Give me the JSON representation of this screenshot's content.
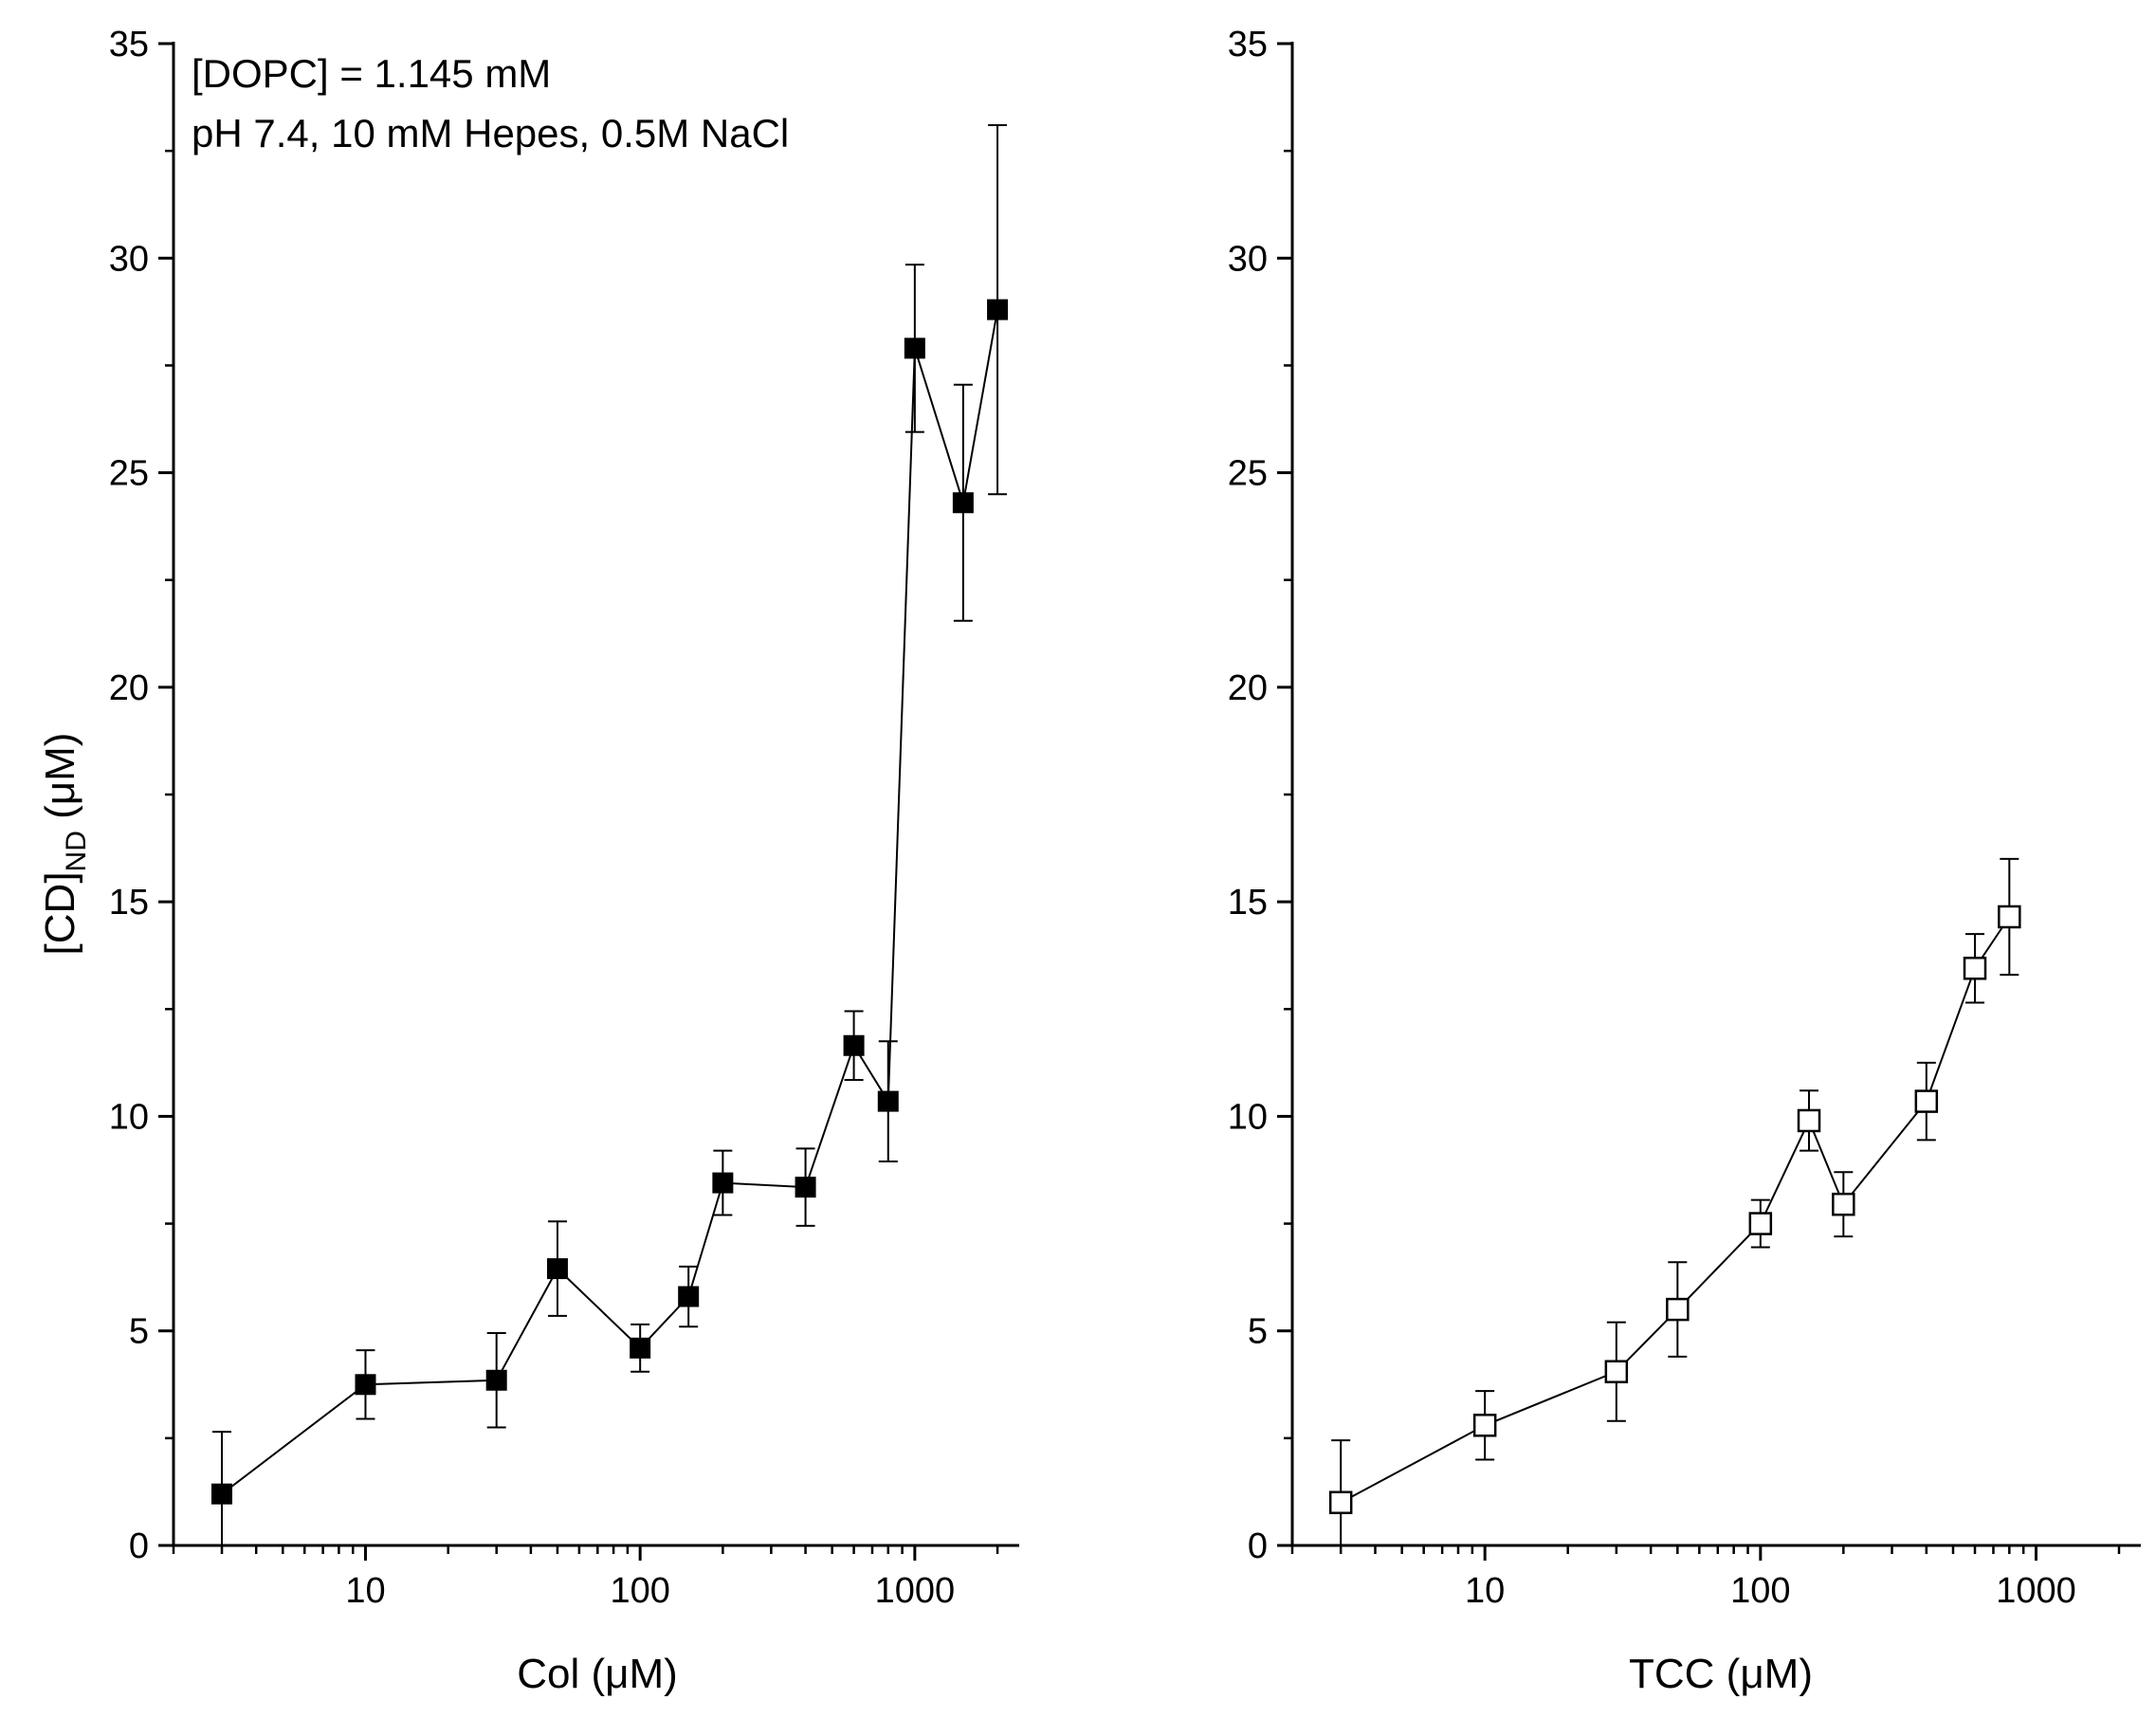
{
  "chart_data": [
    {
      "type": "line",
      "marker": "filled-square",
      "color": "#000000",
      "xscale": "log",
      "xlabel": "Col (μM)",
      "ylabel_main": "[CD]",
      "ylabel_sub": "ND",
      "ylabel_unit": "(μM)",
      "xlim": [
        2,
        2400
      ],
      "ylim": [
        0,
        35
      ],
      "xticks": [
        10,
        100,
        1000
      ],
      "xtick_labels": [
        "10",
        "100",
        "1000"
      ],
      "yticks": [
        0,
        5,
        10,
        15,
        20,
        25,
        30,
        35
      ],
      "ytick_labels": [
        "0",
        "5",
        "10",
        "15",
        "20",
        "25",
        "30",
        "35"
      ],
      "annotations": [
        "[DOPC] = 1.145 mM",
        "pH 7.4, 10 mM Hepes, 0.5M NaCl"
      ],
      "x": [
        3,
        10,
        30,
        50,
        100,
        150,
        200,
        400,
        600,
        800,
        1000,
        1500,
        2000
      ],
      "y": [
        1.2,
        3.75,
        3.85,
        6.45,
        4.6,
        5.8,
        8.45,
        8.35,
        11.65,
        10.35,
        27.9,
        24.3,
        28.8
      ],
      "err": [
        1.45,
        0.8,
        1.1,
        1.1,
        0.55,
        0.7,
        0.75,
        0.9,
        0.8,
        1.4,
        1.95,
        2.75,
        4.3
      ]
    },
    {
      "type": "line",
      "marker": "open-square",
      "color": "#000000",
      "xscale": "log",
      "xlabel": "TCC (μM)",
      "xlim": [
        2,
        2400
      ],
      "ylim": [
        0,
        35
      ],
      "xticks": [
        10,
        100,
        1000
      ],
      "xtick_labels": [
        "10",
        "100",
        "1000"
      ],
      "yticks": [
        0,
        5,
        10,
        15,
        20,
        25,
        30,
        35
      ],
      "ytick_labels": [
        "0",
        "5",
        "10",
        "15",
        "20",
        "25",
        "30",
        "35"
      ],
      "x": [
        3,
        10,
        30,
        50,
        100,
        150,
        200,
        400,
        600,
        800
      ],
      "y": [
        1.0,
        2.8,
        4.05,
        5.5,
        7.5,
        9.9,
        7.95,
        10.35,
        13.45,
        14.65
      ],
      "err": [
        1.45,
        0.8,
        1.15,
        1.1,
        0.55,
        0.7,
        0.75,
        0.9,
        0.8,
        1.35
      ]
    }
  ]
}
